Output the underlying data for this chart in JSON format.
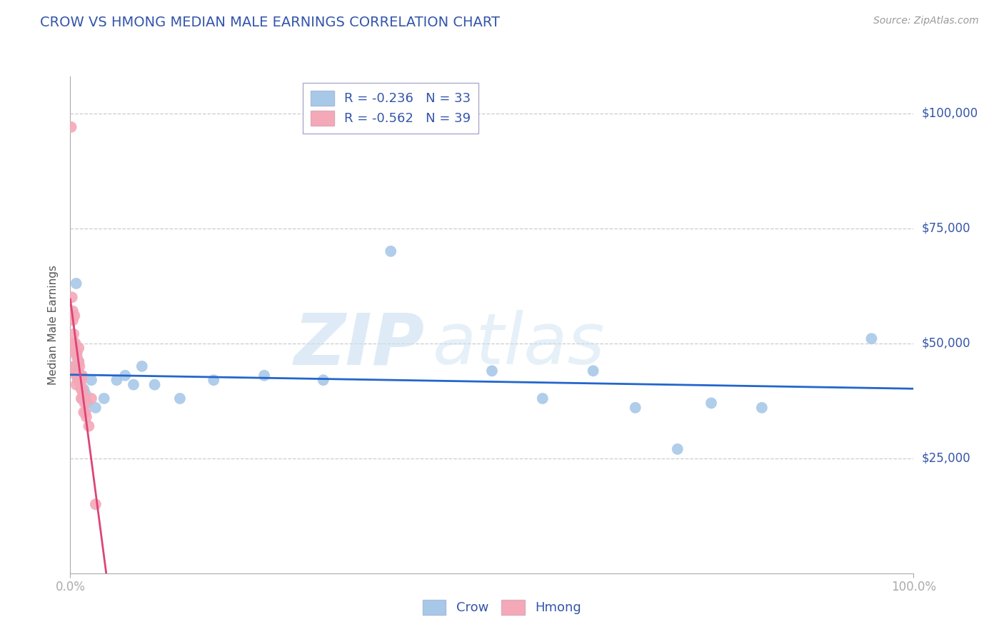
{
  "title": "CROW VS HMONG MEDIAN MALE EARNINGS CORRELATION CHART",
  "source": "Source: ZipAtlas.com",
  "ylabel": "Median Male Earnings",
  "ytick_labels": [
    "$25,000",
    "$50,000",
    "$75,000",
    "$100,000"
  ],
  "ytick_values": [
    25000,
    50000,
    75000,
    100000
  ],
  "ymax": 108000,
  "ymin": 0,
  "xmin": 0.0,
  "xmax": 1.0,
  "crow_R": -0.236,
  "crow_N": 33,
  "hmong_R": -0.562,
  "hmong_N": 39,
  "crow_color": "#a8c8e8",
  "hmong_color": "#f4a8b8",
  "crow_line_color": "#2266cc",
  "hmong_line_color": "#dd4477",
  "title_color": "#3355aa",
  "source_color": "#999999",
  "label_color": "#3355aa",
  "crow_x": [
    0.004,
    0.006,
    0.007,
    0.008,
    0.009,
    0.01,
    0.011,
    0.012,
    0.014,
    0.016,
    0.018,
    0.02,
    0.025,
    0.03,
    0.04,
    0.055,
    0.065,
    0.075,
    0.085,
    0.1,
    0.13,
    0.17,
    0.23,
    0.3,
    0.38,
    0.5,
    0.56,
    0.62,
    0.67,
    0.72,
    0.76,
    0.82,
    0.95
  ],
  "crow_y": [
    45000,
    44000,
    63000,
    48000,
    43000,
    46000,
    42000,
    41000,
    38000,
    40000,
    39000,
    37000,
    42000,
    36000,
    38000,
    42000,
    43000,
    41000,
    45000,
    41000,
    38000,
    42000,
    43000,
    42000,
    70000,
    44000,
    38000,
    44000,
    36000,
    27000,
    37000,
    36000,
    51000
  ],
  "hmong_x": [
    0.001,
    0.002,
    0.003,
    0.003,
    0.004,
    0.004,
    0.005,
    0.005,
    0.005,
    0.006,
    0.006,
    0.007,
    0.007,
    0.007,
    0.008,
    0.008,
    0.009,
    0.009,
    0.01,
    0.01,
    0.01,
    0.011,
    0.011,
    0.012,
    0.012,
    0.013,
    0.013,
    0.013,
    0.014,
    0.014,
    0.015,
    0.016,
    0.016,
    0.017,
    0.018,
    0.019,
    0.022,
    0.025,
    0.03
  ],
  "hmong_y": [
    97000,
    60000,
    57000,
    55000,
    50000,
    52000,
    56000,
    48000,
    44000,
    50000,
    45000,
    48000,
    43000,
    41000,
    47000,
    43000,
    44000,
    42000,
    49000,
    46000,
    42000,
    45000,
    42000,
    43000,
    41000,
    42000,
    40000,
    38000,
    43000,
    40000,
    39000,
    38000,
    35000,
    37000,
    35000,
    34000,
    32000,
    38000,
    15000
  ],
  "watermark_zip": "ZIP",
  "watermark_atlas": "atlas",
  "background_color": "#ffffff",
  "grid_color": "#cccccc",
  "legend_crow_label": "R = -0.236   N = 33",
  "legend_hmong_label": "R = -0.562   N = 39",
  "bottom_crow_label": "Crow",
  "bottom_hmong_label": "Hmong"
}
